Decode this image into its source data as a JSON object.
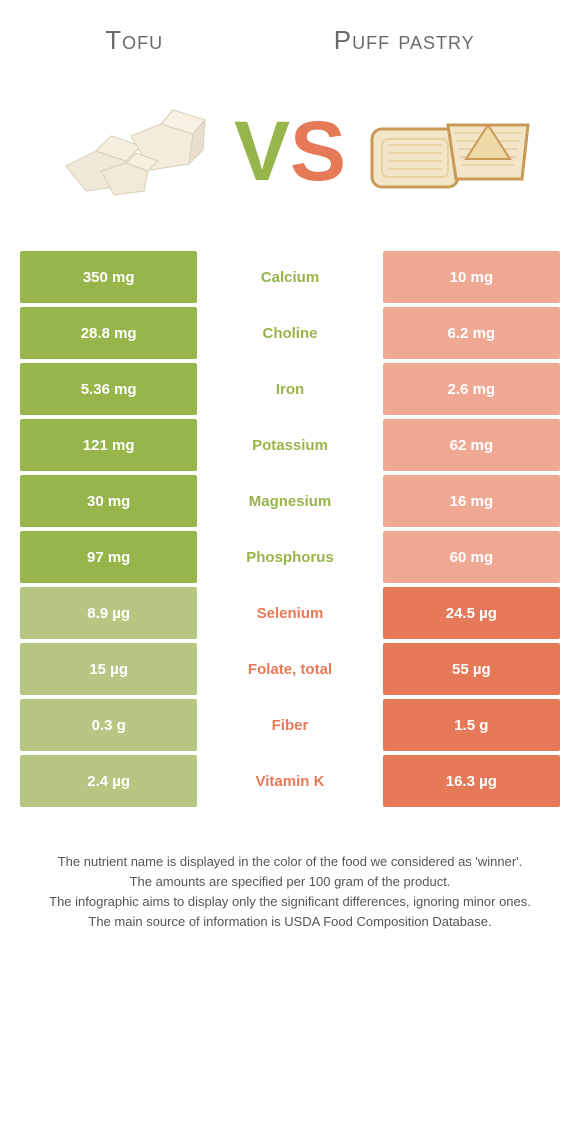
{
  "colors": {
    "left": "#96b54a",
    "right": "#e67a58",
    "left_muted": "#b6c783",
    "right_muted": "#efa891"
  },
  "foods": {
    "left": {
      "name": "Tofu"
    },
    "right": {
      "name": "Puff pastry"
    }
  },
  "vs": {
    "v": "V",
    "s": "S"
  },
  "rows": [
    {
      "label": "Calcium",
      "left": "350 mg",
      "right": "10 mg",
      "winner": "left"
    },
    {
      "label": "Choline",
      "left": "28.8 mg",
      "right": "6.2 mg",
      "winner": "left"
    },
    {
      "label": "Iron",
      "left": "5.36 mg",
      "right": "2.6 mg",
      "winner": "left"
    },
    {
      "label": "Potassium",
      "left": "121 mg",
      "right": "62 mg",
      "winner": "left"
    },
    {
      "label": "Magnesium",
      "left": "30 mg",
      "right": "16 mg",
      "winner": "left"
    },
    {
      "label": "Phosphorus",
      "left": "97 mg",
      "right": "60 mg",
      "winner": "left"
    },
    {
      "label": "Selenium",
      "left": "8.9 µg",
      "right": "24.5 µg",
      "winner": "right"
    },
    {
      "label": "Folate, total",
      "left": "15 µg",
      "right": "55 µg",
      "winner": "right"
    },
    {
      "label": "Fiber",
      "left": "0.3 g",
      "right": "1.5 g",
      "winner": "right"
    },
    {
      "label": "Vitamin K",
      "left": "2.4 µg",
      "right": "16.3 µg",
      "winner": "right"
    }
  ],
  "footnotes": [
    "The nutrient name is displayed in the color of the food we considered as 'winner'.",
    "The amounts are specified per 100 gram of the product.",
    "The infographic aims to display only the significant differences, ignoring minor ones.",
    "The main source of information is USDA Food Composition Database."
  ]
}
